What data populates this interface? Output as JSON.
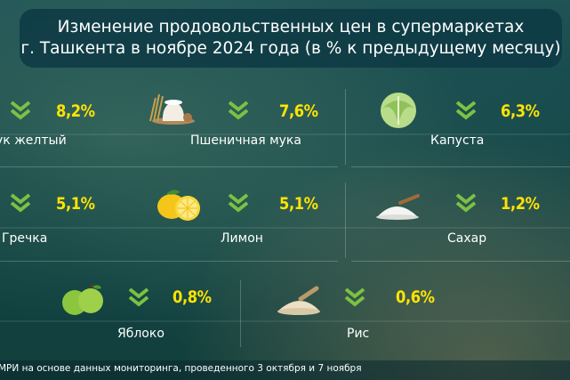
{
  "header": {
    "title_line1": "Изменение продовольственных цен в супермаркетах",
    "title_line2": "г. Ташкента в ноябре 2024 года (в % к предыдущему месяцу)"
  },
  "items": [
    {
      "name": "ук желтый",
      "value": "8,2%",
      "icon": "onion-icon"
    },
    {
      "name": "Пшеничная мука",
      "value": "7,6%",
      "icon": "flour-icon"
    },
    {
      "name": "Капуста",
      "value": "6,3%",
      "icon": "cabbage-icon"
    },
    {
      "name": "Гречка",
      "value": "5,1%",
      "icon": "buckwheat-icon"
    },
    {
      "name": "Лимон",
      "value": "5,1%",
      "icon": "lemon-icon"
    },
    {
      "name": "Сахар",
      "value": "1,2%",
      "icon": "sugar-icon"
    },
    {
      "name": "Яблоко",
      "value": "0,8%",
      "icon": "apple-icon"
    },
    {
      "name": "Рис",
      "value": "0,6%",
      "icon": "rice-icon"
    }
  ],
  "colors": {
    "accent": "#ffe400",
    "arrow": "#7cc242",
    "header_bg": "#0e3a44"
  },
  "footer": {
    "source": "МРИ на основе данных мониторинга, проведенного 3 октября и 7 ноября"
  }
}
